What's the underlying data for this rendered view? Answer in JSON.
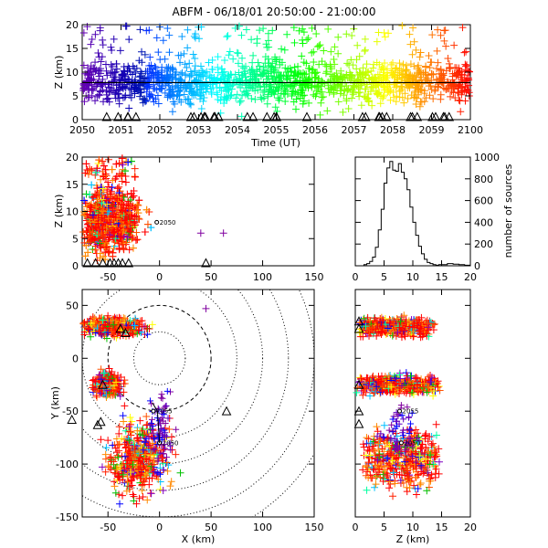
{
  "title": "ABFM - 06/18/01 20:50:00 - 21:00:00",
  "colors": {
    "frame": "#000000",
    "mean_line": "#000000",
    "marker_stroke": "#000000"
  },
  "chart_data": [
    {
      "id": "time_height",
      "type": "scatter",
      "xlabel": "Time (UT)",
      "ylabel": "Z (km)",
      "xlim": [
        2050,
        2100
      ],
      "ylim": [
        0,
        20
      ],
      "xticks": [
        "2050",
        "2051",
        "2052",
        "2053",
        "2054",
        "2055",
        "2056",
        "2057",
        "2058",
        "2059",
        "2100"
      ],
      "yticks": [
        "0",
        "5",
        "10",
        "15",
        "20"
      ],
      "color_by": "time",
      "color_scale": "rainbow, purple (2050) to red (2100)",
      "marker": "+",
      "mean_height_line_km": 7.8,
      "source_band_km": [
        4,
        12
      ],
      "station_marker": "triangle"
    },
    {
      "id": "x_height",
      "type": "scatter",
      "xlabel": "",
      "ylabel": "Z (km)",
      "xlim": [
        -75,
        150
      ],
      "ylim": [
        0,
        20
      ],
      "xticks": [
        "-50",
        "0",
        "50",
        "100",
        "150"
      ],
      "yticks": [
        "0",
        "5",
        "10",
        "15",
        "20"
      ],
      "marker": "+",
      "source_x_range_km": [
        -70,
        5
      ],
      "scattered_points": [
        {
          "x": 40,
          "z": 6
        },
        {
          "x": 62,
          "z": 6
        }
      ],
      "station_label": "2050",
      "station_marker": "triangle"
    },
    {
      "id": "altitude_histogram",
      "type": "line",
      "xlabel": "",
      "ylabel": "number of sources",
      "xlim": [
        0,
        20
      ],
      "ylim": [
        0,
        1000
      ],
      "xticks": [
        "0",
        "5",
        "10",
        "15",
        "20"
      ],
      "yticks": [
        "0",
        "200",
        "400",
        "600",
        "800",
        "1000"
      ],
      "y_axis_side": "right",
      "x": [
        1,
        1.5,
        2,
        2.5,
        3,
        3.5,
        4,
        4.5,
        5,
        5.5,
        6,
        6.5,
        7,
        7.5,
        8,
        8.5,
        9,
        9.5,
        10,
        10.5,
        11,
        11.5,
        12,
        12.5,
        13,
        13.5,
        14,
        14.5,
        15,
        16,
        17,
        18,
        19,
        20
      ],
      "y": [
        0,
        10,
        20,
        40,
        80,
        170,
        330,
        520,
        760,
        900,
        960,
        880,
        870,
        940,
        860,
        800,
        700,
        540,
        400,
        280,
        180,
        110,
        60,
        30,
        20,
        10,
        5,
        10,
        10,
        20,
        15,
        10,
        5,
        0
      ]
    },
    {
      "id": "plan_view",
      "type": "scatter",
      "xlabel": "X (km)",
      "ylabel": "Y (km)",
      "xlim": [
        -75,
        150
      ],
      "ylim": [
        -150,
        65
      ],
      "xticks": [
        "-50",
        "0",
        "50",
        "100",
        "150"
      ],
      "yticks": [
        "-150",
        "-100",
        "-50",
        "0",
        "50"
      ],
      "marker": "+",
      "range_rings_km": [
        25,
        50,
        75,
        100,
        125,
        150,
        175
      ],
      "clusters": [
        {
          "x": -45,
          "y": 30,
          "rx": 28,
          "ry": 8
        },
        {
          "x": -50,
          "y": -25,
          "rx": 12,
          "ry": 10
        },
        {
          "x": -20,
          "y": -95,
          "rx": 28,
          "ry": 35
        }
      ],
      "stations": [
        {
          "x": -38,
          "y": 28,
          "label": ""
        },
        {
          "x": -33,
          "y": 24,
          "label": ""
        },
        {
          "x": -55,
          "y": -25,
          "label": ""
        },
        {
          "x": -85,
          "y": -58,
          "label": ""
        },
        {
          "x": -60,
          "y": -63,
          "label": ""
        },
        {
          "x": -57,
          "y": -60,
          "label": ""
        },
        {
          "x": -6,
          "y": -50,
          "label": "2055"
        },
        {
          "x": 0,
          "y": -80,
          "label": "2050"
        },
        {
          "x": 65,
          "y": -50,
          "label": ""
        }
      ]
    },
    {
      "id": "z_y_view",
      "type": "scatter",
      "xlabel": "Z (km)",
      "ylabel": "",
      "xlim": [
        0,
        20
      ],
      "ylim": [
        -150,
        65
      ],
      "xticks": [
        "0",
        "5",
        "10",
        "15",
        "20"
      ],
      "marker": "+",
      "bands": [
        {
          "z": [
            1,
            13
          ],
          "y": 30
        },
        {
          "z": [
            1,
            14
          ],
          "y": -25
        },
        {
          "z": [
            2,
            14
          ],
          "y": -95
        }
      ],
      "stations": [
        {
          "z": 0,
          "y": 35,
          "label": ""
        },
        {
          "z": 0,
          "y": 28,
          "label": ""
        },
        {
          "z": 0,
          "y": -25,
          "label": ""
        },
        {
          "z": 0,
          "y": -50,
          "label": ""
        },
        {
          "z": 0,
          "y": -62,
          "label": ""
        },
        {
          "z": 7.7,
          "y": -50,
          "label": "2055"
        },
        {
          "z": 8,
          "y": -80,
          "label": "2050"
        }
      ]
    }
  ]
}
